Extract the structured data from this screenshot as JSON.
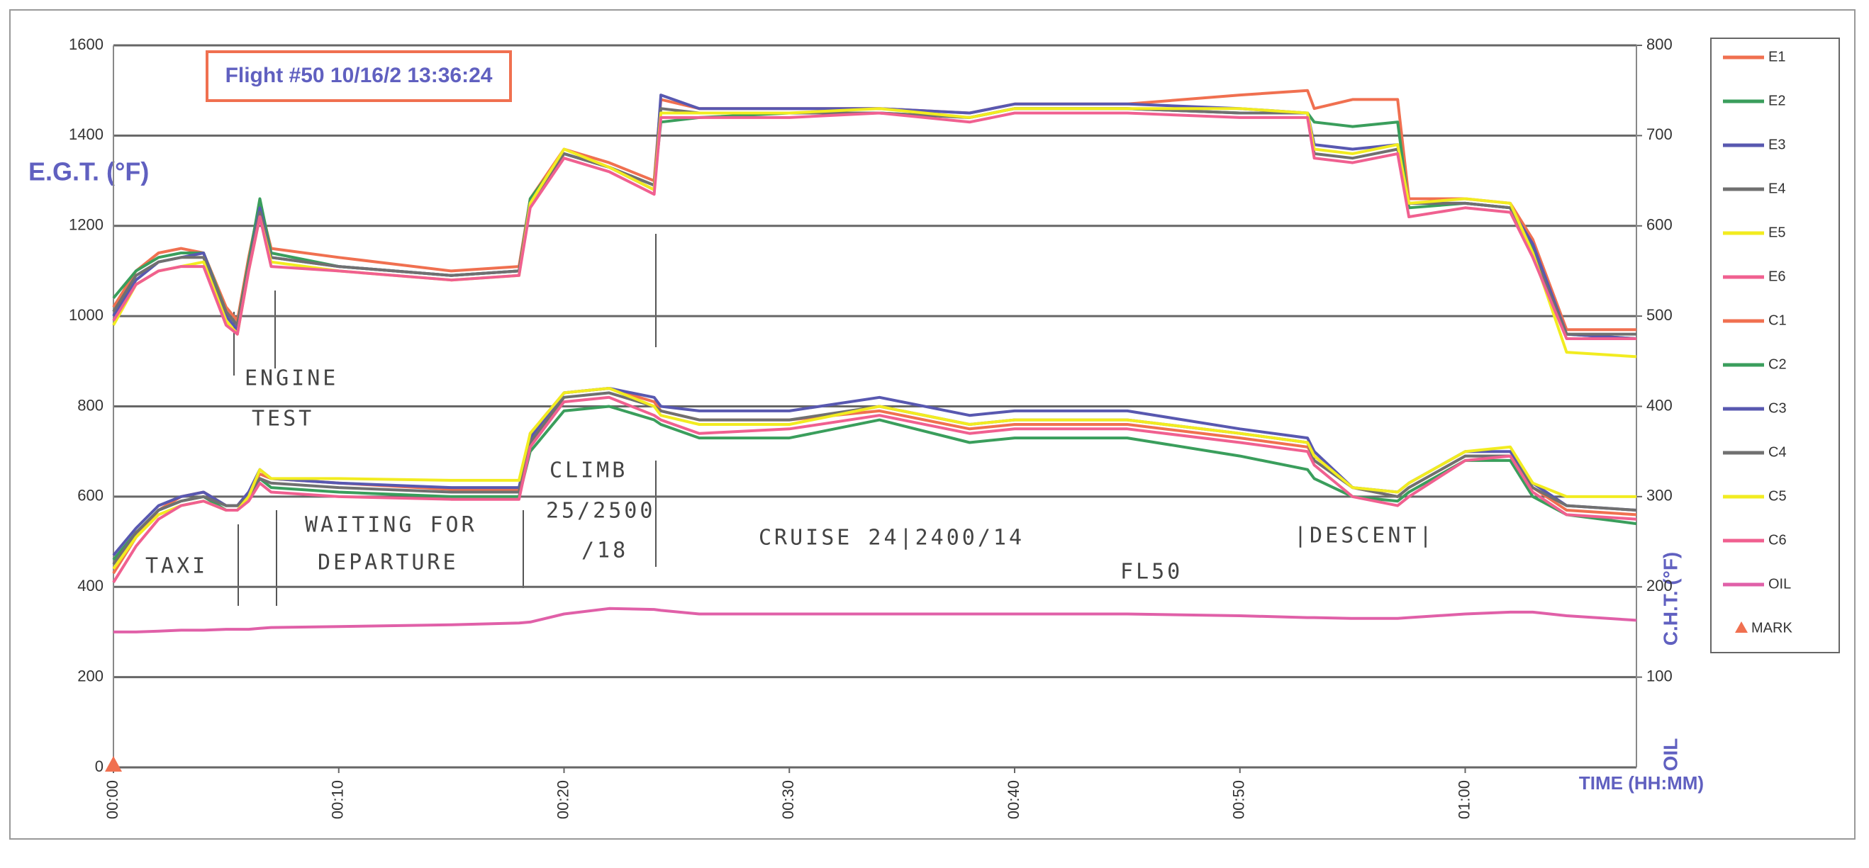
{
  "chart_data": {
    "type": "line",
    "title": "Flight #50 10/16/2 13:36:24",
    "y_label": "E.G.T. (°F)",
    "y2_label": "C.H.T. (°F)",
    "y2_sub_label": "OIL",
    "x_label": "TIME (HH:MM)",
    "annotations": [
      "ENGINE",
      "TEST",
      "TAXI",
      "WAITING FOR",
      "DEPARTURE",
      "CLIMB",
      "25/2500",
      "/18",
      "CRUISE 24|2400/14",
      "FL50",
      "|DESCENT|"
    ],
    "x": [
      0,
      1,
      2,
      3,
      4,
      5,
      5.5,
      6,
      6.5,
      7,
      10,
      15,
      18,
      18.5,
      20,
      22,
      24,
      24.3,
      26,
      30,
      34,
      38,
      40,
      45,
      50,
      53,
      53.3,
      55,
      57,
      57.5,
      60,
      62,
      63,
      64.5,
      67.6
    ],
    "xlim": [
      0,
      67.6
    ],
    "xticks": [
      {
        "value": 0,
        "label": "00:00"
      },
      {
        "value": 10,
        "label": "00:10"
      },
      {
        "value": 20,
        "label": "00:20"
      },
      {
        "value": 30,
        "label": "00:30"
      },
      {
        "value": 40,
        "label": "00:40"
      },
      {
        "value": 50,
        "label": "00:50"
      },
      {
        "value": 60,
        "label": "01:00"
      }
    ],
    "ylim": [
      0,
      1600
    ],
    "yticks": [
      0,
      200,
      400,
      600,
      800,
      1000,
      1200,
      1400,
      1600
    ],
    "y2lim": [
      0,
      800
    ],
    "y2ticks": [
      100,
      200,
      300,
      400,
      500,
      600,
      700,
      800
    ],
    "grid": true,
    "legend": "right",
    "series": [
      {
        "name": "E1",
        "color": "#f07050",
        "values": [
          1020,
          1100,
          1140,
          1150,
          1140,
          1020,
          990,
          1130,
          1250,
          1150,
          1130,
          1100,
          1110,
          1260,
          1370,
          1340,
          1300,
          1480,
          1460,
          1460,
          1460,
          1450,
          1470,
          1470,
          1490,
          1500,
          1460,
          1480,
          1480,
          1260,
          1260,
          1250,
          1170,
          970,
          970
        ]
      },
      {
        "name": "E2",
        "color": "#3a9e5c",
        "values": [
          1040,
          1100,
          1130,
          1140,
          1140,
          1010,
          980,
          1120,
          1260,
          1140,
          1110,
          1090,
          1100,
          1260,
          1360,
          1330,
          1290,
          1430,
          1440,
          1450,
          1450,
          1440,
          1460,
          1460,
          1450,
          1450,
          1430,
          1420,
          1430,
          1240,
          1250,
          1240,
          1150,
          960,
          950
        ]
      },
      {
        "name": "E3",
        "color": "#5858b0",
        "values": [
          1000,
          1080,
          1120,
          1130,
          1140,
          1000,
          970,
          1110,
          1240,
          1130,
          1110,
          1090,
          1100,
          1250,
          1360,
          1330,
          1280,
          1490,
          1460,
          1460,
          1460,
          1450,
          1470,
          1470,
          1460,
          1450,
          1380,
          1370,
          1380,
          1250,
          1250,
          1240,
          1160,
          960,
          950
        ]
      },
      {
        "name": "E4",
        "color": "#707070",
        "values": [
          1010,
          1090,
          1120,
          1130,
          1130,
          1010,
          980,
          1110,
          1230,
          1130,
          1110,
          1090,
          1100,
          1250,
          1360,
          1330,
          1290,
          1460,
          1450,
          1450,
          1450,
          1440,
          1460,
          1460,
          1450,
          1450,
          1360,
          1350,
          1370,
          1250,
          1250,
          1240,
          1140,
          960,
          960
        ]
      },
      {
        "name": "E5",
        "color": "#f2ec20",
        "values": [
          980,
          1070,
          1100,
          1110,
          1120,
          990,
          960,
          1100,
          1220,
          1120,
          1100,
          1080,
          1090,
          1250,
          1370,
          1330,
          1280,
          1450,
          1450,
          1450,
          1460,
          1440,
          1460,
          1460,
          1460,
          1450,
          1370,
          1360,
          1380,
          1250,
          1260,
          1250,
          1140,
          920,
          910
        ]
      },
      {
        "name": "E6",
        "color": "#f06090",
        "values": [
          990,
          1070,
          1100,
          1110,
          1110,
          980,
          960,
          1100,
          1220,
          1110,
          1100,
          1080,
          1090,
          1240,
          1350,
          1320,
          1270,
          1440,
          1440,
          1440,
          1450,
          1430,
          1450,
          1450,
          1440,
          1440,
          1350,
          1340,
          1360,
          1220,
          1240,
          1230,
          1130,
          950,
          950
        ]
      },
      {
        "name": "C1",
        "color": "#f07050",
        "axis": "y2",
        "values": [
          215,
          255,
          285,
          300,
          305,
          290,
          290,
          305,
          325,
          320,
          315,
          308,
          308,
          370,
          415,
          420,
          405,
          395,
          385,
          385,
          395,
          375,
          380,
          380,
          365,
          355,
          345,
          310,
          300,
          310,
          345,
          345,
          310,
          285,
          280
        ]
      },
      {
        "name": "C2",
        "color": "#3a9e5c",
        "axis": "y2",
        "values": [
          230,
          260,
          285,
          295,
          300,
          285,
          285,
          300,
          320,
          310,
          305,
          300,
          300,
          350,
          395,
          400,
          385,
          380,
          365,
          365,
          385,
          360,
          365,
          365,
          345,
          330,
          320,
          300,
          295,
          305,
          340,
          340,
          300,
          280,
          270
        ]
      },
      {
        "name": "C3",
        "color": "#5858b0",
        "axis": "y2",
        "values": [
          235,
          265,
          290,
          300,
          305,
          290,
          290,
          305,
          330,
          320,
          315,
          310,
          310,
          365,
          415,
          420,
          410,
          400,
          395,
          395,
          410,
          390,
          395,
          395,
          375,
          365,
          350,
          310,
          305,
          315,
          350,
          350,
          315,
          290,
          285
        ]
      },
      {
        "name": "C4",
        "color": "#707070",
        "axis": "y2",
        "values": [
          225,
          260,
          285,
          295,
          300,
          290,
          290,
          300,
          320,
          315,
          310,
          305,
          305,
          360,
          410,
          415,
          400,
          395,
          385,
          385,
          400,
          380,
          385,
          385,
          370,
          360,
          340,
          310,
          300,
          310,
          345,
          345,
          310,
          290,
          285
        ]
      },
      {
        "name": "C5",
        "color": "#f2ec20",
        "axis": "y2",
        "values": [
          220,
          255,
          280,
          290,
          295,
          285,
          285,
          300,
          330,
          320,
          320,
          318,
          318,
          370,
          415,
          420,
          400,
          390,
          380,
          380,
          400,
          380,
          385,
          385,
          370,
          360,
          345,
          310,
          305,
          315,
          350,
          355,
          315,
          300,
          300
        ]
      },
      {
        "name": "C6",
        "color": "#f06090",
        "axis": "y2",
        "values": [
          205,
          245,
          275,
          290,
          295,
          285,
          285,
          295,
          315,
          305,
          300,
          297,
          297,
          355,
          405,
          410,
          390,
          385,
          370,
          375,
          390,
          370,
          375,
          375,
          360,
          350,
          335,
          300,
          290,
          300,
          340,
          345,
          305,
          280,
          275
        ]
      },
      {
        "name": "OIL",
        "color": "#e060a8",
        "axis": "y2",
        "values": [
          150,
          150,
          151,
          152,
          152,
          153,
          153,
          153,
          154,
          155,
          156,
          158,
          160,
          161,
          170,
          176,
          175,
          174,
          170,
          170,
          170,
          170,
          170,
          170,
          168,
          166,
          166,
          165,
          165,
          166,
          170,
          172,
          172,
          168,
          163
        ]
      }
    ],
    "marks": {
      "name": "MARK",
      "color": "#f07050",
      "x": [
        0
      ],
      "values": [
        0
      ]
    }
  }
}
